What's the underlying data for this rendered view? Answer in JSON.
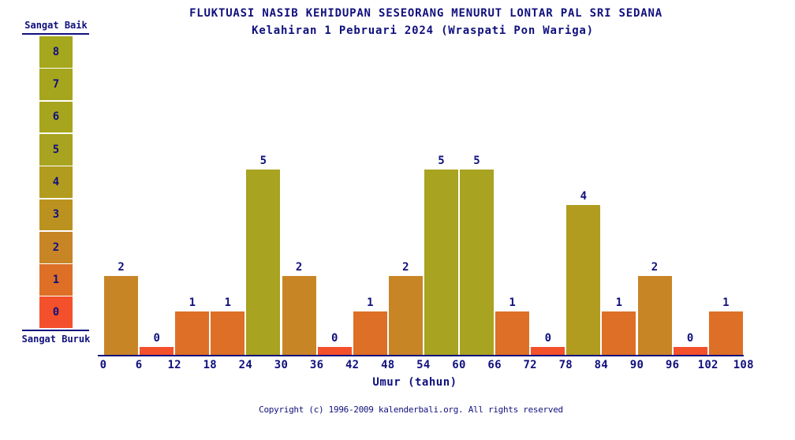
{
  "colors": {
    "navy": "#10107e",
    "background": "#ffffff"
  },
  "legend": {
    "top_label": "Sangat Baik",
    "bottom_label": "Sangat Buruk",
    "scale": [
      {
        "value": 8,
        "color": "#a5a71d"
      },
      {
        "value": 7,
        "color": "#a6a61e"
      },
      {
        "value": 6,
        "color": "#a7a51e"
      },
      {
        "value": 5,
        "color": "#a8a320"
      },
      {
        "value": 4,
        "color": "#b19c1f"
      },
      {
        "value": 3,
        "color": "#bb9220"
      },
      {
        "value": 2,
        "color": "#c88526"
      },
      {
        "value": 1,
        "color": "#dd7026"
      },
      {
        "value": 0,
        "color": "#f3502b"
      }
    ]
  },
  "chart_data": {
    "type": "bar",
    "title": "FLUKTUASI NASIB KEHIDUPAN SESEORANG MENURUT LONTAR PAL SRI SEDANA",
    "subtitle": "Kelahiran 1 Pebruari 2024 (Wraspati Pon Wariga)",
    "xlabel": "Umur (tahun)",
    "ylabel": "",
    "categories": [
      "0-6",
      "6-12",
      "12-18",
      "18-24",
      "24-30",
      "30-36",
      "36-42",
      "42-48",
      "48-54",
      "54-60",
      "60-66",
      "66-72",
      "72-78",
      "78-84",
      "84-90",
      "90-96",
      "96-102",
      "102-108"
    ],
    "values": [
      2,
      0,
      1,
      1,
      5,
      2,
      0,
      1,
      2,
      5,
      5,
      1,
      0,
      4,
      1,
      2,
      0,
      1
    ],
    "x_ticks": [
      0,
      6,
      12,
      18,
      24,
      30,
      36,
      42,
      48,
      54,
      60,
      66,
      72,
      78,
      84,
      90,
      96,
      102,
      108
    ],
    "ylim": [
      0,
      8
    ],
    "grid": false,
    "legend_position": "left",
    "value_scale_best_label": "Sangat Baik",
    "value_scale_worst_label": "Sangat Buruk",
    "value_colors": {
      "0": "#f3502b",
      "1": "#dd7026",
      "2": "#c88526",
      "3": "#bb9220",
      "4": "#b19c1f",
      "5": "#a8a320",
      "6": "#a7a51e",
      "7": "#a6a61e",
      "8": "#a5a71d"
    }
  },
  "footer": {
    "copyright": "Copyright (c) 1996-2009 kalenderbali.org. All rights reserved"
  }
}
